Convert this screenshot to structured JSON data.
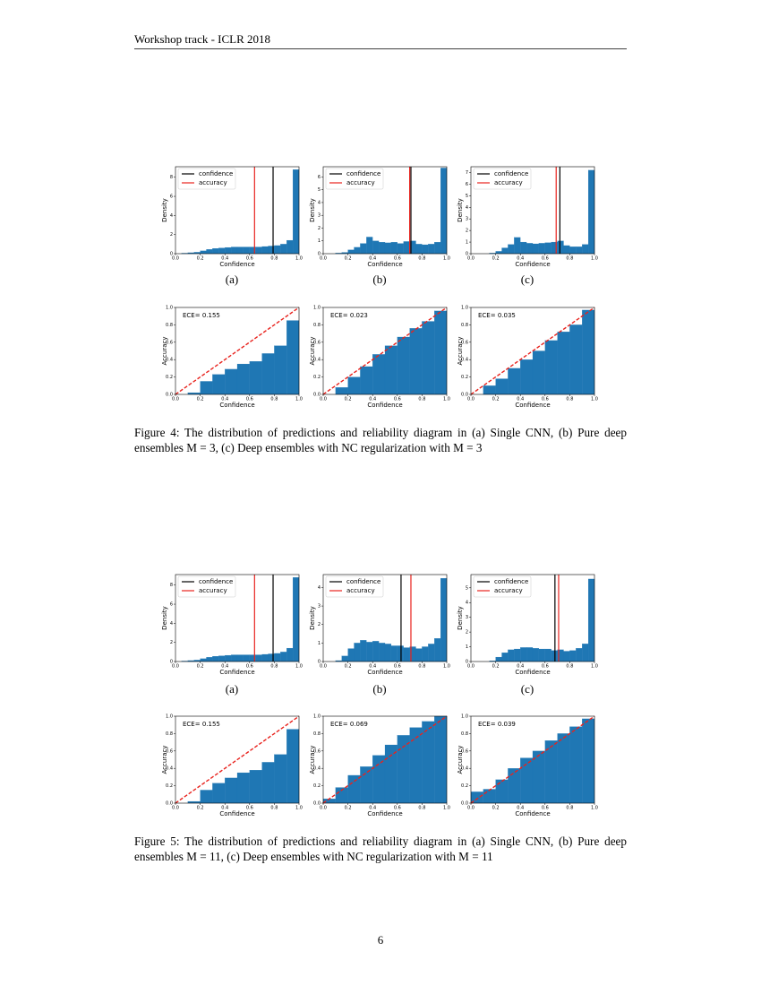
{
  "header": "Workshop track - ICLR 2018",
  "chart_data": [
    {
      "type": "histogram",
      "xlabel": "Confidence",
      "ylabel": "Density",
      "color": "#1f77b4",
      "bins": [
        0,
        0.05,
        0.1,
        0.15,
        0.2,
        0.25,
        0.3,
        0.35,
        0.4,
        0.45,
        0.5,
        0.55,
        0.6,
        0.65,
        0.7,
        0.75,
        0.8,
        0.85,
        0.9,
        0.95,
        1
      ],
      "values": [
        0,
        0.05,
        0.1,
        0.15,
        0.3,
        0.45,
        0.55,
        0.6,
        0.65,
        0.7,
        0.7,
        0.7,
        0.7,
        0.7,
        0.75,
        0.8,
        0.85,
        1.0,
        1.4,
        8.8
      ],
      "xlim": [
        0,
        1
      ],
      "ylim": [
        0,
        9.1
      ],
      "xticks": [
        {
          "value": 0,
          "label": "0.0"
        },
        0.2,
        0.4,
        0.6,
        0.8,
        {
          "value": 1,
          "label": "1.0"
        }
      ],
      "yticks": [
        0,
        2,
        4,
        6,
        8
      ],
      "vlines": [
        {
          "name": "confidence",
          "color": "#000000",
          "value": 0.79
        },
        {
          "name": "accuracy",
          "color": "#e8231e",
          "value": 0.64
        }
      ],
      "legend": "upper left"
    },
    {
      "type": "histogram",
      "xlabel": "Confidence",
      "ylabel": "Density",
      "color": "#1f77b4",
      "bins": [
        0,
        0.05,
        0.1,
        0.15,
        0.2,
        0.25,
        0.3,
        0.35,
        0.4,
        0.45,
        0.5,
        0.55,
        0.6,
        0.65,
        0.7,
        0.75,
        0.8,
        0.85,
        0.9,
        0.95,
        1
      ],
      "values": [
        0,
        0,
        0.05,
        0.1,
        0.3,
        0.5,
        0.8,
        1.3,
        1.0,
        0.9,
        0.85,
        0.9,
        0.8,
        0.95,
        1.0,
        0.75,
        0.7,
        0.75,
        0.9,
        6.7
      ],
      "xlim": [
        0,
        1
      ],
      "ylim": [
        0,
        6.8
      ],
      "xticks": [
        {
          "value": 0,
          "label": "0.0"
        },
        0.2,
        0.4,
        0.6,
        0.8,
        {
          "value": 1,
          "label": "1.0"
        }
      ],
      "yticks": [
        0,
        1,
        2,
        3,
        4,
        5,
        6
      ],
      "vlines": [
        {
          "name": "confidence",
          "color": "#000000",
          "value": 0.71
        },
        {
          "name": "accuracy",
          "color": "#e8231e",
          "value": 0.7
        }
      ],
      "legend": "upper left"
    },
    {
      "type": "histogram",
      "xlabel": "Confidence",
      "ylabel": "Density",
      "color": "#1f77b4",
      "bins": [
        0,
        0.05,
        0.1,
        0.15,
        0.2,
        0.25,
        0.3,
        0.35,
        0.4,
        0.45,
        0.5,
        0.55,
        0.6,
        0.65,
        0.7,
        0.75,
        0.8,
        0.85,
        0.9,
        0.95,
        1
      ],
      "values": [
        0,
        0,
        0,
        0.05,
        0.2,
        0.5,
        0.8,
        1.4,
        1.0,
        0.9,
        0.85,
        0.9,
        0.95,
        1.0,
        1.1,
        0.7,
        0.6,
        0.6,
        0.8,
        7.2
      ],
      "xlim": [
        0,
        1
      ],
      "ylim": [
        0,
        7.5
      ],
      "xticks": [
        {
          "value": 0,
          "label": "0.0"
        },
        0.2,
        0.4,
        0.6,
        0.8,
        {
          "value": 1,
          "label": "1.0"
        }
      ],
      "yticks": [
        0,
        1,
        2,
        3,
        4,
        5,
        6,
        7
      ],
      "vlines": [
        {
          "name": "confidence",
          "color": "#000000",
          "value": 0.72
        },
        {
          "name": "accuracy",
          "color": "#e8231e",
          "value": 0.69
        }
      ],
      "legend": "upper left"
    },
    {
      "type": "histogram",
      "xlabel": "Confidence",
      "ylabel": "Accuracy",
      "color": "#1f77b4",
      "annotation": "ECE= 0.155",
      "bins": [
        0,
        0.1,
        0.2,
        0.3,
        0.4,
        0.5,
        0.6,
        0.7,
        0.8,
        0.9,
        1
      ],
      "values": [
        0,
        0.02,
        0.15,
        0.23,
        0.29,
        0.35,
        0.38,
        0.47,
        0.56,
        0.85
      ],
      "xlim": [
        0,
        1
      ],
      "ylim": [
        0,
        1
      ],
      "xticks": [
        {
          "value": 0,
          "label": "0.0"
        },
        0.2,
        0.4,
        0.6,
        0.8,
        {
          "value": 1,
          "label": "1.0"
        }
      ],
      "yticks": [
        {
          "value": 0,
          "label": "0.0"
        },
        0.2,
        0.4,
        0.6,
        0.8,
        {
          "value": 1,
          "label": "1.0"
        }
      ],
      "diagonal": true,
      "diagonal_color": "#e8231e"
    },
    {
      "type": "histogram",
      "xlabel": "Confidence",
      "ylabel": "Accuracy",
      "color": "#1f77b4",
      "annotation": "ECE= 0.023",
      "bins": [
        0,
        0.1,
        0.2,
        0.3,
        0.4,
        0.5,
        0.6,
        0.7,
        0.8,
        0.9,
        1
      ],
      "values": [
        0,
        0.08,
        0.2,
        0.32,
        0.46,
        0.56,
        0.66,
        0.76,
        0.84,
        0.96
      ],
      "xlim": [
        0,
        1
      ],
      "ylim": [
        0,
        1
      ],
      "xticks": [
        {
          "value": 0,
          "label": "0.0"
        },
        0.2,
        0.4,
        0.6,
        0.8,
        {
          "value": 1,
          "label": "1.0"
        }
      ],
      "yticks": [
        {
          "value": 0,
          "label": "0.0"
        },
        0.2,
        0.4,
        0.6,
        0.8,
        {
          "value": 1,
          "label": "1.0"
        }
      ],
      "diagonal": true,
      "diagonal_color": "#e8231e"
    },
    {
      "type": "histogram",
      "xlabel": "Confidence",
      "ylabel": "Accuracy",
      "color": "#1f77b4",
      "annotation": "ECE= 0.035",
      "bins": [
        0,
        0.1,
        0.2,
        0.3,
        0.4,
        0.5,
        0.6,
        0.7,
        0.8,
        0.9,
        1
      ],
      "values": [
        0,
        0.1,
        0.18,
        0.3,
        0.4,
        0.5,
        0.62,
        0.72,
        0.8,
        0.97
      ],
      "xlim": [
        0,
        1
      ],
      "ylim": [
        0,
        1
      ],
      "xticks": [
        {
          "value": 0,
          "label": "0.0"
        },
        0.2,
        0.4,
        0.6,
        0.8,
        {
          "value": 1,
          "label": "1.0"
        }
      ],
      "yticks": [
        {
          "value": 0,
          "label": "0.0"
        },
        0.2,
        0.4,
        0.6,
        0.8,
        {
          "value": 1,
          "label": "1.0"
        }
      ],
      "diagonal": true,
      "diagonal_color": "#e8231e"
    },
    {
      "type": "histogram",
      "xlabel": "Confidence",
      "ylabel": "Density",
      "color": "#1f77b4",
      "bins": [
        0,
        0.05,
        0.1,
        0.15,
        0.2,
        0.25,
        0.3,
        0.35,
        0.4,
        0.45,
        0.5,
        0.55,
        0.6,
        0.65,
        0.7,
        0.75,
        0.8,
        0.85,
        0.9,
        0.95,
        1
      ],
      "values": [
        0,
        0.05,
        0.1,
        0.15,
        0.3,
        0.45,
        0.55,
        0.6,
        0.65,
        0.7,
        0.7,
        0.7,
        0.7,
        0.7,
        0.75,
        0.8,
        0.85,
        1.0,
        1.4,
        8.8
      ],
      "xlim": [
        0,
        1
      ],
      "ylim": [
        0,
        9.1
      ],
      "xticks": [
        {
          "value": 0,
          "label": "0.0"
        },
        0.2,
        0.4,
        0.6,
        0.8,
        {
          "value": 1,
          "label": "1.0"
        }
      ],
      "yticks": [
        0,
        2,
        4,
        6,
        8
      ],
      "vlines": [
        {
          "name": "confidence",
          "color": "#000000",
          "value": 0.79
        },
        {
          "name": "accuracy",
          "color": "#e8231e",
          "value": 0.64
        }
      ],
      "legend": "upper left"
    },
    {
      "type": "histogram",
      "xlabel": "Confidence",
      "ylabel": "Density",
      "color": "#1f77b4",
      "bins": [
        0,
        0.05,
        0.1,
        0.15,
        0.2,
        0.25,
        0.3,
        0.35,
        0.4,
        0.45,
        0.5,
        0.55,
        0.6,
        0.65,
        0.7,
        0.75,
        0.8,
        0.85,
        0.9,
        0.95,
        1
      ],
      "values": [
        0,
        0,
        0.05,
        0.3,
        0.7,
        1.0,
        1.15,
        1.05,
        1.1,
        1.0,
        0.95,
        0.85,
        0.85,
        0.75,
        0.8,
        0.7,
        0.8,
        0.95,
        1.25,
        4.5
      ],
      "xlim": [
        0,
        1
      ],
      "ylim": [
        0,
        4.7
      ],
      "xticks": [
        {
          "value": 0,
          "label": "0.0"
        },
        0.2,
        0.4,
        0.6,
        0.8,
        {
          "value": 1,
          "label": "1.0"
        }
      ],
      "yticks": [
        0,
        1,
        2,
        3,
        4
      ],
      "vlines": [
        {
          "name": "confidence",
          "color": "#000000",
          "value": 0.63
        },
        {
          "name": "accuracy",
          "color": "#e8231e",
          "value": 0.71
        }
      ],
      "legend": "upper left"
    },
    {
      "type": "histogram",
      "xlabel": "Confidence",
      "ylabel": "Density",
      "color": "#1f77b4",
      "bins": [
        0,
        0.05,
        0.1,
        0.15,
        0.2,
        0.25,
        0.3,
        0.35,
        0.4,
        0.45,
        0.5,
        0.55,
        0.6,
        0.65,
        0.7,
        0.75,
        0.8,
        0.85,
        0.9,
        0.95,
        1
      ],
      "values": [
        0,
        0,
        0,
        0.05,
        0.3,
        0.6,
        0.8,
        0.85,
        0.95,
        0.95,
        0.9,
        0.85,
        0.85,
        0.75,
        0.8,
        0.7,
        0.75,
        0.9,
        1.2,
        5.6
      ],
      "xlim": [
        0,
        1
      ],
      "ylim": [
        0,
        5.9
      ],
      "xticks": [
        {
          "value": 0,
          "label": "0.0"
        },
        0.2,
        0.4,
        0.6,
        0.8,
        {
          "value": 1,
          "label": "1.0"
        }
      ],
      "yticks": [
        0,
        1,
        2,
        3,
        4,
        5
      ],
      "vlines": [
        {
          "name": "confidence",
          "color": "#000000",
          "value": 0.68
        },
        {
          "name": "accuracy",
          "color": "#e8231e",
          "value": 0.71
        }
      ],
      "legend": "upper left"
    },
    {
      "type": "histogram",
      "xlabel": "Confidence",
      "ylabel": "Accuracy",
      "color": "#1f77b4",
      "annotation": "ECE= 0.155",
      "bins": [
        0,
        0.1,
        0.2,
        0.3,
        0.4,
        0.5,
        0.6,
        0.7,
        0.8,
        0.9,
        1
      ],
      "values": [
        0,
        0.02,
        0.15,
        0.23,
        0.29,
        0.35,
        0.38,
        0.47,
        0.56,
        0.85
      ],
      "xlim": [
        0,
        1
      ],
      "ylim": [
        0,
        1
      ],
      "xticks": [
        {
          "value": 0,
          "label": "0.0"
        },
        0.2,
        0.4,
        0.6,
        0.8,
        {
          "value": 1,
          "label": "1.0"
        }
      ],
      "yticks": [
        {
          "value": 0,
          "label": "0.0"
        },
        0.2,
        0.4,
        0.6,
        0.8,
        {
          "value": 1,
          "label": "1.0"
        }
      ],
      "diagonal": true,
      "diagonal_color": "#e8231e"
    },
    {
      "type": "histogram",
      "xlabel": "Confidence",
      "ylabel": "Accuracy",
      "color": "#1f77b4",
      "annotation": "ECE= 0.069",
      "bins": [
        0,
        0.1,
        0.2,
        0.3,
        0.4,
        0.5,
        0.6,
        0.7,
        0.8,
        0.9,
        1
      ],
      "values": [
        0.05,
        0.18,
        0.32,
        0.42,
        0.55,
        0.67,
        0.78,
        0.87,
        0.94,
        1.0
      ],
      "xlim": [
        0,
        1
      ],
      "ylim": [
        0,
        1
      ],
      "xticks": [
        {
          "value": 0,
          "label": "0.0"
        },
        0.2,
        0.4,
        0.6,
        0.8,
        {
          "value": 1,
          "label": "1.0"
        }
      ],
      "yticks": [
        {
          "value": 0,
          "label": "0.0"
        },
        0.2,
        0.4,
        0.6,
        0.8,
        {
          "value": 1,
          "label": "1.0"
        }
      ],
      "diagonal": true,
      "diagonal_color": "#e8231e"
    },
    {
      "type": "histogram",
      "xlabel": "Confidence",
      "ylabel": "Accuracy",
      "color": "#1f77b4",
      "annotation": "ECE= 0.039",
      "bins": [
        0,
        0.1,
        0.2,
        0.3,
        0.4,
        0.5,
        0.6,
        0.7,
        0.8,
        0.9,
        1
      ],
      "values": [
        0.13,
        0.16,
        0.27,
        0.4,
        0.52,
        0.6,
        0.72,
        0.8,
        0.88,
        0.97
      ],
      "xlim": [
        0,
        1
      ],
      "ylim": [
        0,
        1
      ],
      "xticks": [
        {
          "value": 0,
          "label": "0.0"
        },
        0.2,
        0.4,
        0.6,
        0.8,
        {
          "value": 1,
          "label": "1.0"
        }
      ],
      "yticks": [
        {
          "value": 0,
          "label": "0.0"
        },
        0.2,
        0.4,
        0.6,
        0.8,
        {
          "value": 1,
          "label": "1.0"
        }
      ],
      "diagonal": true,
      "diagonal_color": "#e8231e"
    }
  ],
  "figures": [
    {
      "subcaptions": [
        "(a)",
        "(b)",
        "(c)"
      ],
      "caption": "Figure 4: The distribution of predictions and reliability diagram in (a) Single CNN, (b) Pure deep ensembles M = 3, (c) Deep ensembles with NC regularization with M = 3"
    },
    {
      "subcaptions": [
        "(a)",
        "(b)",
        "(c)"
      ],
      "caption": "Figure 5: The distribution of predictions and reliability diagram in (a) Single CNN, (b) Pure deep ensembles M = 11, (c) Deep ensembles with NC regularization with M = 11"
    }
  ],
  "page_number": "6"
}
